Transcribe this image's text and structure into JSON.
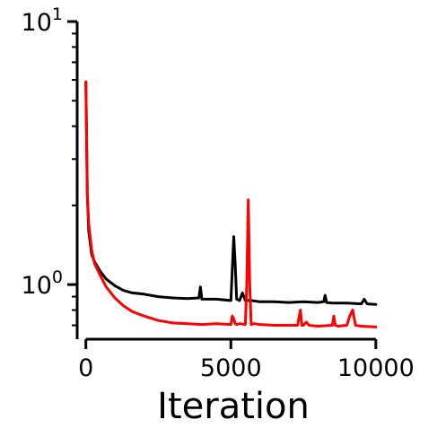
{
  "chart_data": {
    "type": "line",
    "title": "",
    "xlabel": "Iteration",
    "ylabel": "",
    "xlim": [
      -300,
      10500
    ],
    "ylim": [
      0.62,
      10
    ],
    "yscale": "log",
    "grid": false,
    "legend": "none",
    "x_ticks": [
      {
        "value": 0,
        "label": "0"
      },
      {
        "value": 5000,
        "label": "5000"
      },
      {
        "value": 10000,
        "label": "10000"
      }
    ],
    "y_ticks": [
      {
        "value": 1,
        "base": "10",
        "exp": "0"
      },
      {
        "value": 10,
        "base": "10",
        "exp": "1"
      }
    ],
    "series": [
      {
        "color": "#000000",
        "x": [
          0,
          50,
          100,
          200,
          300,
          500,
          700,
          1000,
          1300,
          1600,
          2000,
          2500,
          3000,
          3500,
          3900,
          3950,
          4000,
          4500,
          5000,
          5050,
          5100,
          5150,
          5200,
          5300,
          5400,
          5500,
          5700,
          6000,
          6500,
          7000,
          7500,
          8000,
          8200,
          8250,
          8300,
          8500,
          9000,
          9500,
          9600,
          9700,
          10000
        ],
        "values": [
          5.9,
          2.2,
          1.6,
          1.3,
          1.22,
          1.12,
          1.05,
          0.99,
          0.95,
          0.93,
          0.92,
          0.9,
          0.89,
          0.885,
          0.89,
          0.98,
          0.88,
          0.88,
          0.87,
          1.15,
          1.52,
          1.2,
          0.88,
          0.87,
          0.93,
          0.87,
          0.87,
          0.86,
          0.86,
          0.855,
          0.86,
          0.855,
          0.86,
          0.91,
          0.855,
          0.85,
          0.85,
          0.845,
          0.88,
          0.845,
          0.84
        ]
      },
      {
        "color": "#ff0000",
        "x": [
          0,
          50,
          100,
          200,
          300,
          500,
          700,
          1000,
          1300,
          1600,
          2000,
          2500,
          3000,
          3500,
          4000,
          4500,
          5000,
          5050,
          5100,
          5150,
          5200,
          5300,
          5500,
          5550,
          5600,
          5650,
          5700,
          5800,
          6000,
          6500,
          7000,
          7300,
          7400,
          7450,
          7500,
          7600,
          7700,
          8000,
          8500,
          8550,
          8600,
          8700,
          9000,
          9100,
          9200,
          9300,
          9500,
          10000
        ],
        "values": [
          5.9,
          2.2,
          1.7,
          1.35,
          1.2,
          1.08,
          0.98,
          0.89,
          0.83,
          0.79,
          0.76,
          0.73,
          0.715,
          0.71,
          0.705,
          0.71,
          0.705,
          0.76,
          0.74,
          0.71,
          0.705,
          0.71,
          0.705,
          1.0,
          2.1,
          1.0,
          0.705,
          0.71,
          0.705,
          0.7,
          0.7,
          0.7,
          0.8,
          0.7,
          0.7,
          0.72,
          0.7,
          0.695,
          0.7,
          0.76,
          0.7,
          0.695,
          0.7,
          0.76,
          0.8,
          0.7,
          0.695,
          0.69
        ]
      }
    ]
  }
}
